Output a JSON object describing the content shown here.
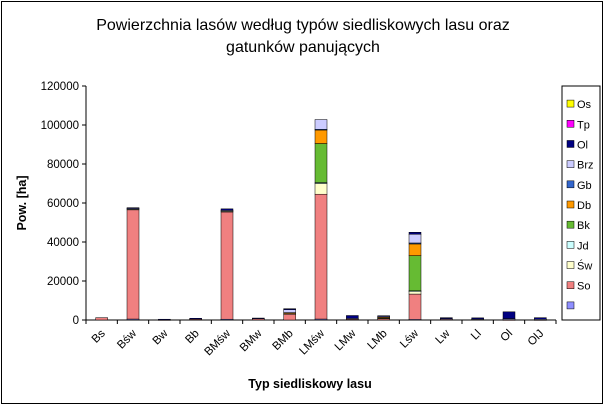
{
  "chart_data": {
    "type": "bar",
    "stacked": true,
    "title": [
      "Powierzchnia lasów według typów siedliskowych lasu oraz",
      "gatunków panujących"
    ],
    "xlabel": "Typ siedliskowy lasu",
    "ylabel": "Pow. [ha]",
    "ylim": [
      0,
      120000
    ],
    "yticks": [
      "0",
      "20000",
      "40000",
      "60000",
      "80000",
      "100000",
      "120000"
    ],
    "categories": [
      "Bs",
      "Bśw",
      "Bw",
      "Bb",
      "BMśw",
      "BMw",
      "BMb",
      "LMśw",
      "LMw",
      "LMb",
      "Lśw",
      "Lw",
      "Ll",
      "Ol",
      "OlJ"
    ],
    "legend_position": "right",
    "grid": false,
    "series": [
      {
        "name": "",
        "color": "#8f8fff",
        "values": [
          0,
          500,
          0,
          0,
          400,
          0,
          0,
          500,
          0,
          0,
          300,
          0,
          0,
          0,
          0
        ]
      },
      {
        "name": "So",
        "color": "#f08080",
        "values": [
          1200,
          56000,
          200,
          400,
          55000,
          800,
          3000,
          64000,
          500,
          800,
          13000,
          400,
          300,
          200,
          200
        ]
      },
      {
        "name": "Św",
        "color": "#ffffcc",
        "values": [
          0,
          400,
          0,
          0,
          500,
          0,
          300,
          5500,
          0,
          200,
          1500,
          0,
          0,
          0,
          0
        ]
      },
      {
        "name": "Jd",
        "color": "#ccffff",
        "values": [
          0,
          0,
          0,
          0,
          0,
          0,
          0,
          500,
          0,
          0,
          200,
          0,
          0,
          0,
          0
        ]
      },
      {
        "name": "Bk",
        "color": "#66bb33",
        "values": [
          0,
          0,
          0,
          0,
          0,
          0,
          0,
          20000,
          0,
          200,
          18000,
          0,
          0,
          0,
          0
        ]
      },
      {
        "name": "Db",
        "color": "#ff9900",
        "values": [
          0,
          0,
          0,
          0,
          0,
          0,
          500,
          7000,
          0,
          200,
          6000,
          0,
          0,
          0,
          0
        ]
      },
      {
        "name": "Gb",
        "color": "#3366cc",
        "values": [
          0,
          0,
          0,
          0,
          0,
          0,
          0,
          300,
          0,
          0,
          500,
          0,
          0,
          0,
          0
        ]
      },
      {
        "name": "Brz",
        "color": "#ccccff",
        "values": [
          0,
          500,
          0,
          0,
          300,
          0,
          1500,
          5000,
          300,
          500,
          4500,
          300,
          200,
          500,
          200
        ]
      },
      {
        "name": "Ol",
        "color": "#000080",
        "values": [
          0,
          200,
          200,
          500,
          800,
          200,
          500,
          0,
          1500,
          300,
          1000,
          500,
          600,
          3500,
          800
        ]
      },
      {
        "name": "Tp",
        "color": "#ff00ff",
        "values": [
          0,
          0,
          0,
          0,
          0,
          0,
          0,
          0,
          0,
          0,
          0,
          0,
          0,
          0,
          0
        ]
      },
      {
        "name": "Os",
        "color": "#ffff00",
        "values": [
          0,
          0,
          0,
          0,
          0,
          0,
          0,
          0,
          0,
          0,
          0,
          0,
          0,
          0,
          0
        ]
      }
    ]
  }
}
